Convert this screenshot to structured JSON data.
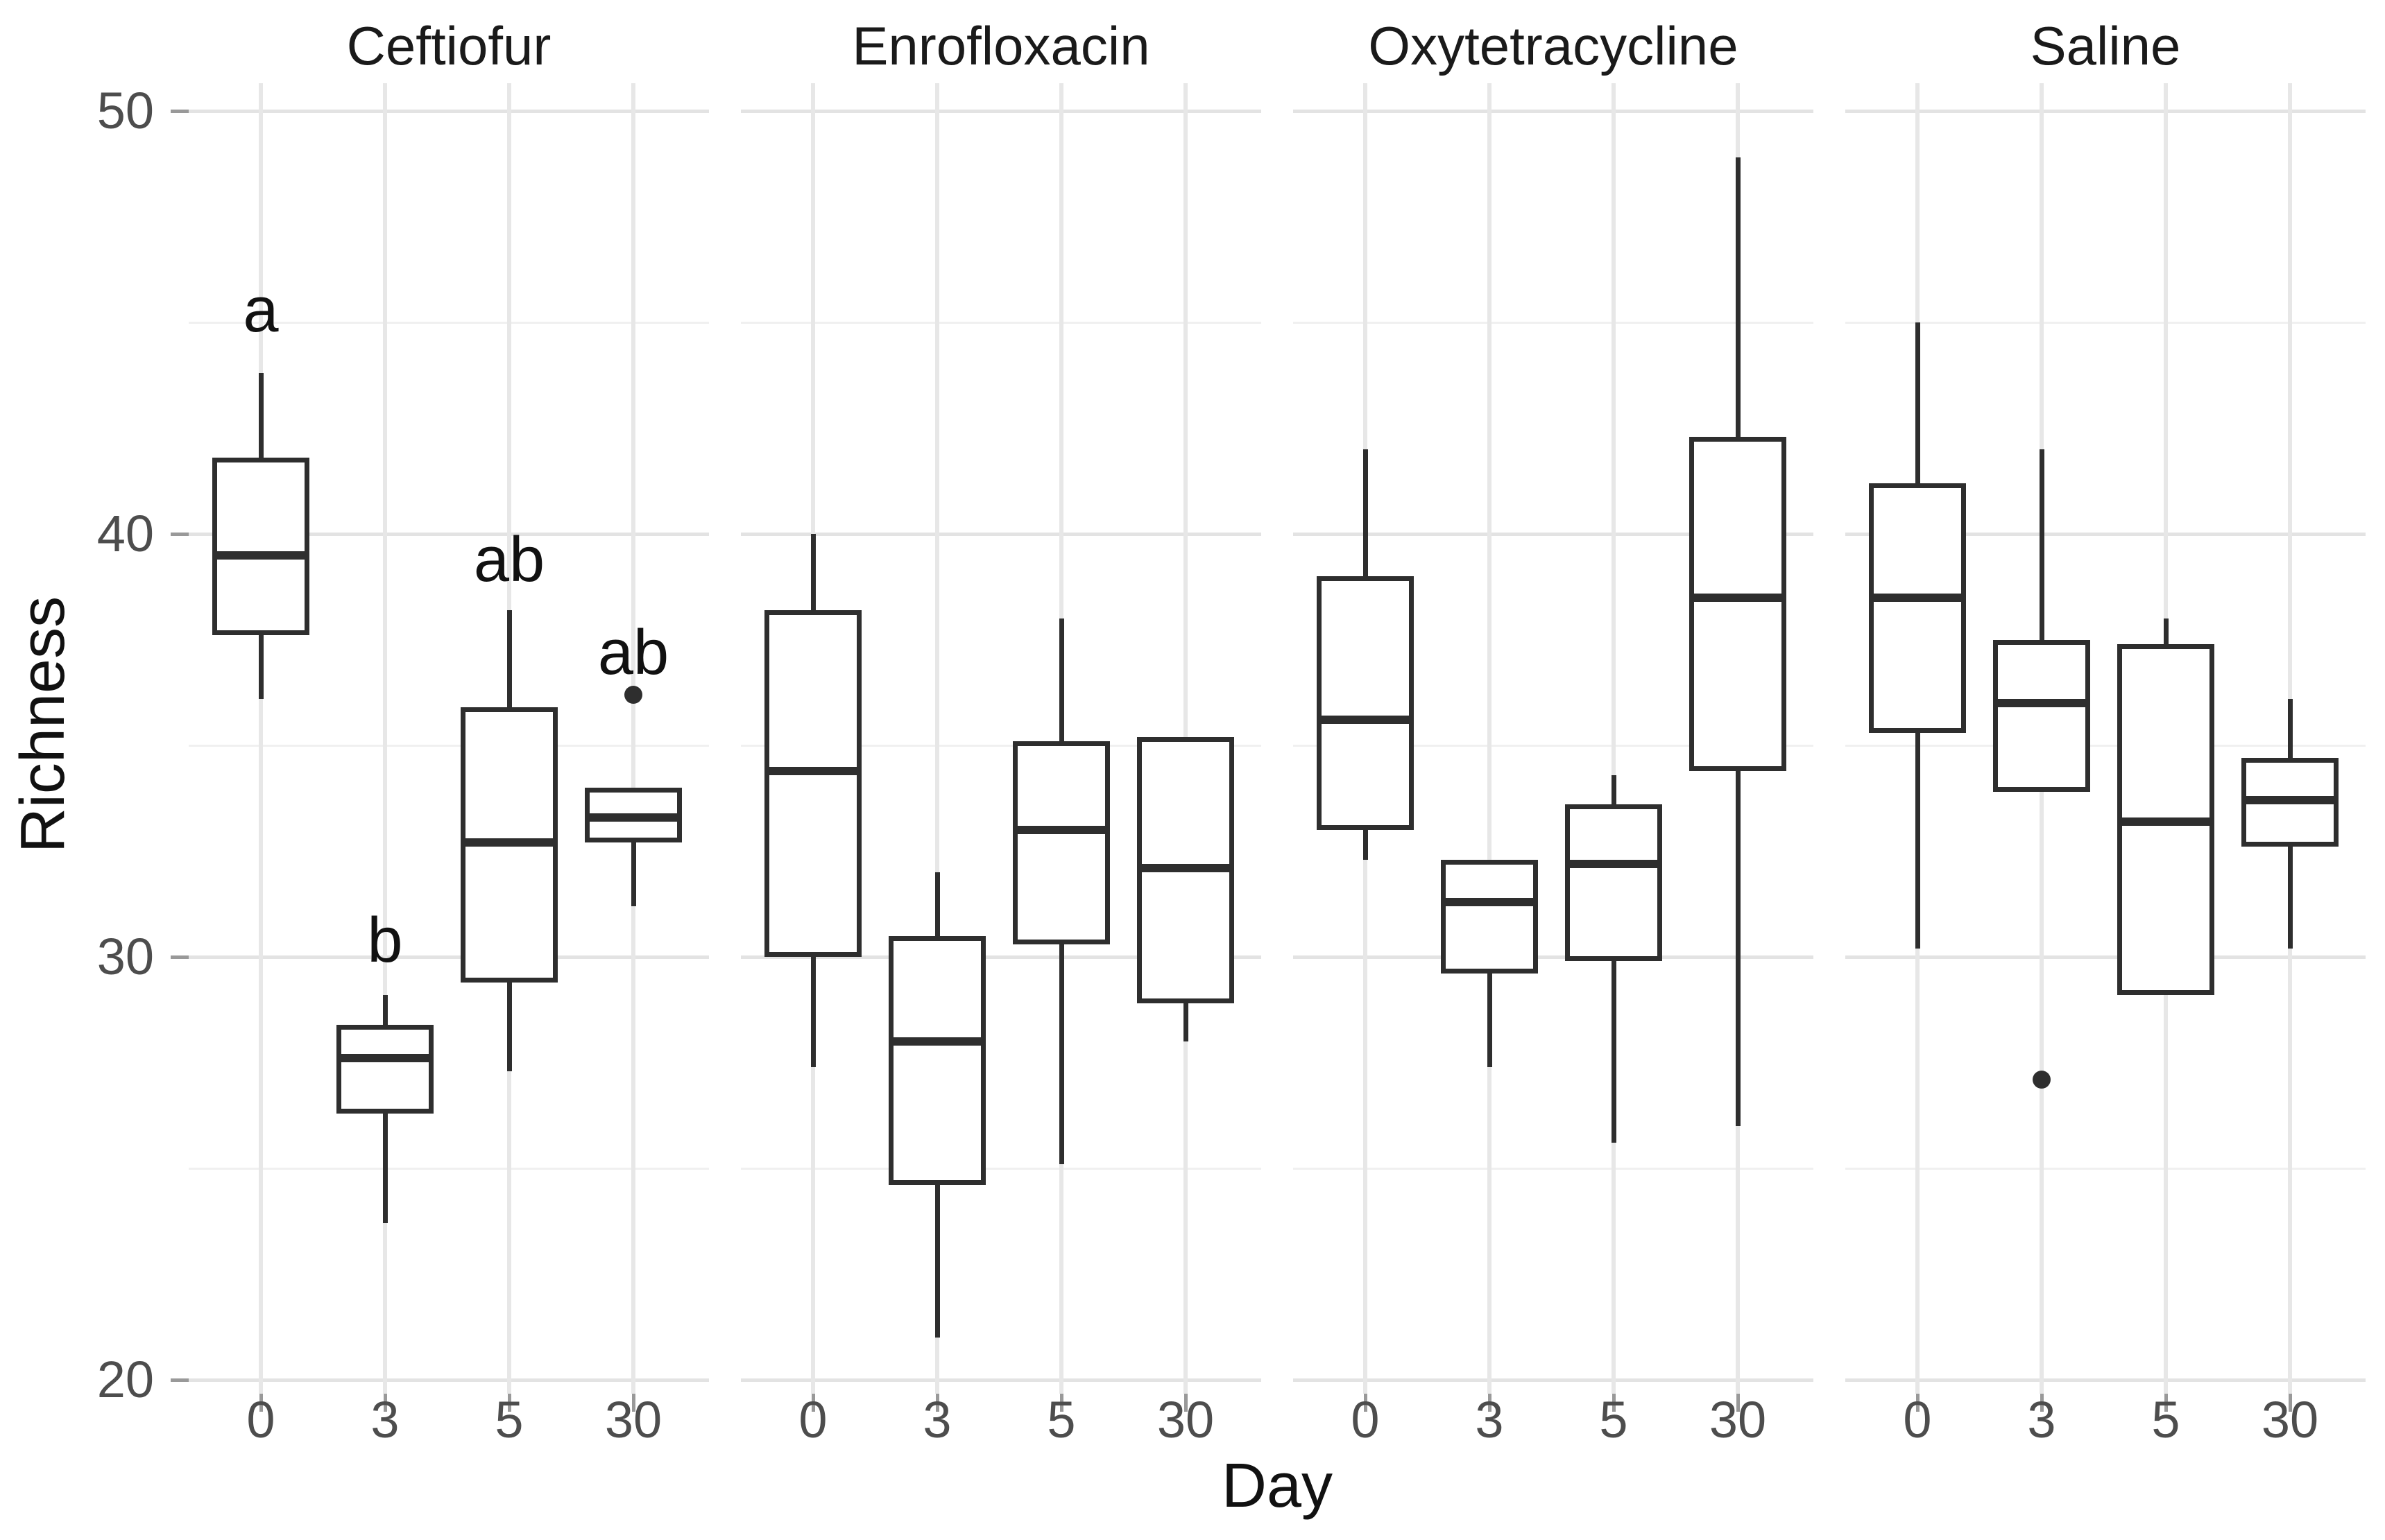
{
  "y_axis": {
    "title": "Richness",
    "major_ticks": [
      50,
      40,
      30,
      20
    ],
    "minor_ticks": [
      45,
      35,
      25
    ],
    "range": [
      20,
      50
    ]
  },
  "x_axis": {
    "title": "Day",
    "categories": [
      "0",
      "3",
      "5",
      "30"
    ]
  },
  "facet_titles": [
    "Ceftiofur",
    "Enrofloxacin",
    "Oxytetracycline",
    "Saline"
  ],
  "colors": {
    "background": "#ffffff",
    "box_line": "#2e2e2e",
    "grid_major": "#e3e3e3",
    "grid_minor": "#f0f0f0",
    "grid_vertical": "#e7e7e7",
    "tick_mark": "#999999",
    "tick_label": "#4d4d4d",
    "axis_title": "#111111",
    "facet_title": "#1a1a1a",
    "sig_letter": "#111111"
  },
  "chart_data": {
    "type": "boxplot",
    "title": "",
    "xlabel": "Day",
    "ylabel": "Richness",
    "ylim": [
      20,
      50
    ],
    "grid": true,
    "legend": false,
    "categories": [
      "0",
      "3",
      "5",
      "30"
    ],
    "facets": [
      {
        "name": "Ceftiofur",
        "boxes": [
          {
            "day": "0",
            "min": 36.1,
            "q1": 37.6,
            "median": 39.5,
            "q3": 41.8,
            "max": 43.8,
            "outliers": [],
            "sig_label": "a",
            "sig_label_y": 45.3
          },
          {
            "day": "3",
            "min": 23.7,
            "q1": 26.3,
            "median": 27.6,
            "q3": 28.4,
            "max": 29.1,
            "outliers": [],
            "sig_label": "b",
            "sig_label_y": 30.4
          },
          {
            "day": "5",
            "min": 27.3,
            "q1": 29.4,
            "median": 32.7,
            "q3": 35.9,
            "max": 38.2,
            "outliers": [],
            "sig_label": "ab",
            "sig_label_y": 39.4
          },
          {
            "day": "30",
            "min": 31.2,
            "q1": 32.7,
            "median": 33.3,
            "q3": 34.0,
            "max": 34.0,
            "outliers": [
              36.2
            ],
            "sig_label": "ab",
            "sig_label_y": 37.2
          }
        ]
      },
      {
        "name": "Enrofloxacin",
        "boxes": [
          {
            "day": "0",
            "min": 27.4,
            "q1": 30.0,
            "median": 34.4,
            "q3": 38.2,
            "max": 40.0,
            "outliers": []
          },
          {
            "day": "3",
            "min": 21.0,
            "q1": 24.6,
            "median": 28.0,
            "q3": 30.5,
            "max": 32.0,
            "outliers": []
          },
          {
            "day": "5",
            "min": 25.1,
            "q1": 30.3,
            "median": 33.0,
            "q3": 35.1,
            "max": 38.0,
            "outliers": []
          },
          {
            "day": "30",
            "min": 28.0,
            "q1": 28.9,
            "median": 32.1,
            "q3": 35.2,
            "max": 35.2,
            "outliers": []
          }
        ]
      },
      {
        "name": "Oxytetracycline",
        "boxes": [
          {
            "day": "0",
            "min": 32.3,
            "q1": 33.0,
            "median": 35.6,
            "q3": 39.0,
            "max": 42.0,
            "outliers": []
          },
          {
            "day": "3",
            "min": 27.4,
            "q1": 29.6,
            "median": 31.3,
            "q3": 32.3,
            "max": 32.3,
            "outliers": []
          },
          {
            "day": "5",
            "min": 25.6,
            "q1": 29.9,
            "median": 32.2,
            "q3": 33.6,
            "max": 34.3,
            "outliers": []
          },
          {
            "day": "30",
            "min": 26.0,
            "q1": 34.4,
            "median": 38.5,
            "q3": 42.3,
            "max": 48.9,
            "outliers": []
          }
        ]
      },
      {
        "name": "Saline",
        "boxes": [
          {
            "day": "0",
            "min": 30.2,
            "q1": 35.3,
            "median": 38.5,
            "q3": 41.2,
            "max": 45.0,
            "outliers": []
          },
          {
            "day": "3",
            "min": 33.9,
            "q1": 33.9,
            "median": 36.0,
            "q3": 37.5,
            "max": 42.0,
            "outliers": [
              27.1
            ]
          },
          {
            "day": "5",
            "min": 29.1,
            "q1": 29.1,
            "median": 33.2,
            "q3": 37.4,
            "max": 38.0,
            "outliers": []
          },
          {
            "day": "30",
            "min": 30.2,
            "q1": 32.6,
            "median": 33.7,
            "q3": 34.7,
            "max": 36.1,
            "outliers": []
          }
        ]
      }
    ]
  }
}
